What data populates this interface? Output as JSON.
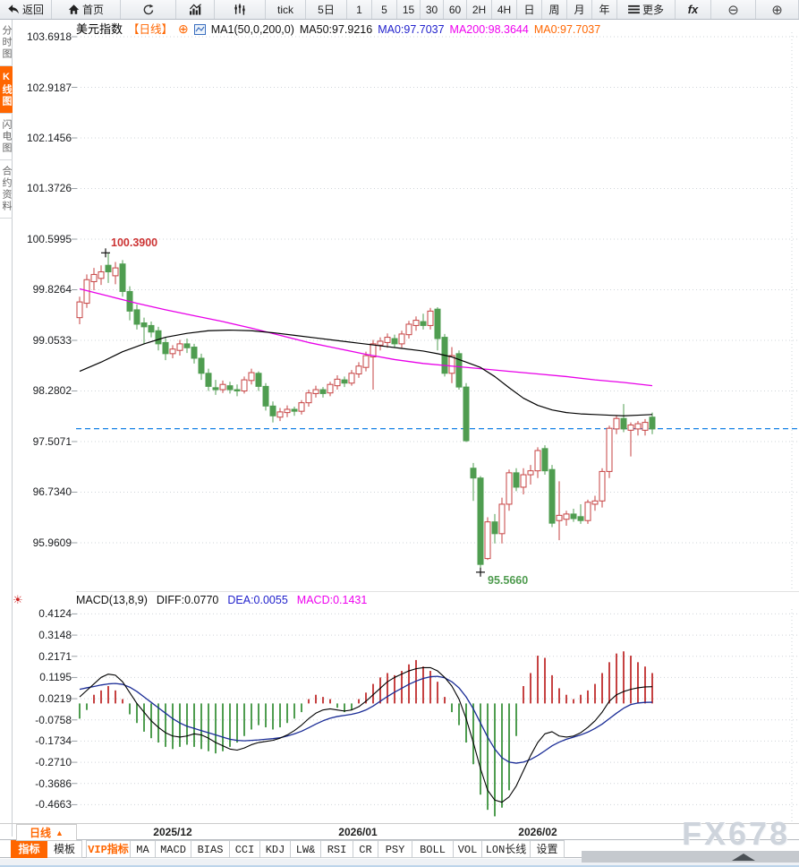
{
  "window": {
    "watermark": "FX678"
  },
  "toolbar": {
    "items": [
      {
        "name": "back",
        "label": "返回",
        "icon": "back-arrow-icon"
      },
      {
        "name": "home",
        "label": "首页",
        "icon": "home-icon"
      },
      {
        "name": "refresh",
        "label": "",
        "icon": "refresh-icon"
      },
      {
        "name": "chart-type-bar",
        "label": "",
        "icon": "bar-chart-icon"
      },
      {
        "name": "chart-type-kline",
        "label": "",
        "icon": "kline-icon"
      },
      {
        "name": "tick",
        "label": "tick"
      },
      {
        "name": "5d",
        "label": "5日"
      },
      {
        "name": "1min",
        "label": "1"
      },
      {
        "name": "5min",
        "label": "5"
      },
      {
        "name": "15min",
        "label": "15"
      },
      {
        "name": "30min",
        "label": "30"
      },
      {
        "name": "60min",
        "label": "60"
      },
      {
        "name": "2h",
        "label": "2H"
      },
      {
        "name": "4h",
        "label": "4H"
      },
      {
        "name": "day",
        "label": "日"
      },
      {
        "name": "week",
        "label": "周"
      },
      {
        "name": "month",
        "label": "月"
      },
      {
        "name": "year",
        "label": "年"
      },
      {
        "name": "more",
        "label": "更多",
        "icon": "menu-icon"
      },
      {
        "name": "fx",
        "label": "fx"
      },
      {
        "name": "zoom-out",
        "label": "⊖",
        "icon": "zoom-out-icon"
      },
      {
        "name": "zoom-in",
        "label": "⊕",
        "icon": "zoom-in-icon"
      }
    ]
  },
  "sidebar": {
    "items": [
      {
        "name": "time-chart",
        "label": "分时图",
        "active": false
      },
      {
        "name": "kline-chart",
        "label": "K线图",
        "active": true
      },
      {
        "name": "lightning-chart",
        "label": "闪电图",
        "active": false
      },
      {
        "name": "contract-info",
        "label": "合约资料",
        "active": false
      }
    ]
  },
  "chart_header": {
    "symbol": "美元指数",
    "period_tag": "【日线】",
    "add_icon": "⊕",
    "ma_settings": "MA1(50,0,200,0)",
    "ma50": "MA50:97.9216",
    "ma0_blue": "MA0:97.7037",
    "ma200": "MA200:98.3644",
    "ma0_orange": "MA0:97.7037"
  },
  "macd_header": {
    "indicator_icon": "☀",
    "title": "MACD(13,8,9)",
    "diff": "DIFF:0.0770",
    "dea": "DEA:0.0055",
    "macd": "MACD:0.1431"
  },
  "bottom": {
    "period_selector": {
      "label": "日线",
      "arrow": "▲"
    },
    "tabs": [
      {
        "name": "indicator",
        "label": "指标",
        "active": true
      },
      {
        "name": "template",
        "label": "模板"
      },
      {
        "name": "vip-indicator",
        "label": "VIP指标",
        "vip": true
      },
      {
        "name": "ma",
        "label": "MA"
      },
      {
        "name": "macd",
        "label": "MACD"
      },
      {
        "name": "bias",
        "label": "BIAS"
      },
      {
        "name": "cci",
        "label": "CCI"
      },
      {
        "name": "kdj",
        "label": "KDJ"
      },
      {
        "name": "lw",
        "label": "LW&"
      },
      {
        "name": "rsi",
        "label": "RSI"
      },
      {
        "name": "cr",
        "label": "CR"
      },
      {
        "name": "psy",
        "label": "PSY"
      },
      {
        "name": "boll",
        "label": "BOLL"
      },
      {
        "name": "vol",
        "label": "VOL"
      },
      {
        "name": "lon",
        "label": "LON长线"
      },
      {
        "name": "settings",
        "label": "设置"
      }
    ]
  },
  "colors": {
    "up_candle": "#c64242",
    "down_candle": "#4f9d50",
    "ma50_line": "#000000",
    "ma200_line": "#e800e8",
    "last_price_line": "#1581e6",
    "diff_line": "#000000",
    "dea_line": "#1a2c96",
    "accent_orange": "#ff6600",
    "grid": "#cfd4d9",
    "annotation_high": "#cc3333",
    "annotation_low": "#4e9b4e"
  },
  "chart_data": [
    {
      "type": "candlestick",
      "title": "美元指数 日线",
      "y_ticks": [
        "103.6918",
        "102.9187",
        "102.1456",
        "101.3726",
        "100.5995",
        "99.8264",
        "99.0533",
        "98.2802",
        "97.5071",
        "96.7340",
        "95.9609"
      ],
      "x_ticks": [
        "2025/12",
        "2026/01",
        "2026/02"
      ],
      "last_price_line": 97.7037,
      "high_annotation": {
        "label": "100.3900",
        "value": 100.39,
        "candle_index": 4
      },
      "low_annotation": {
        "label": "95.5660",
        "value": 95.566,
        "candle_index": 56
      },
      "candles": [
        [
          99.4,
          99.72,
          99.3,
          99.64
        ],
        [
          99.62,
          100.06,
          99.55,
          99.98
        ],
        [
          99.95,
          100.16,
          99.82,
          100.06
        ],
        [
          100.0,
          100.2,
          99.9,
          100.1
        ],
        [
          100.2,
          100.39,
          99.93,
          100.1
        ],
        [
          100.04,
          100.25,
          99.91,
          100.16
        ],
        [
          100.22,
          100.28,
          99.72,
          99.8
        ],
        [
          99.8,
          99.88,
          99.36,
          99.5
        ],
        [
          99.52,
          99.6,
          99.22,
          99.3
        ],
        [
          99.32,
          99.4,
          99.0,
          99.26
        ],
        [
          99.28,
          99.34,
          99.1,
          99.18
        ],
        [
          99.2,
          99.26,
          98.9,
          99.0
        ],
        [
          99.02,
          99.1,
          98.75,
          98.85
        ],
        [
          98.85,
          98.98,
          98.78,
          98.92
        ],
        [
          98.9,
          99.06,
          98.82,
          99.0
        ],
        [
          99.0,
          99.08,
          98.86,
          98.94
        ],
        [
          98.95,
          99.0,
          98.7,
          98.78
        ],
        [
          98.78,
          98.85,
          98.45,
          98.55
        ],
        [
          98.55,
          98.62,
          98.28,
          98.35
        ],
        [
          98.33,
          98.45,
          98.22,
          98.3
        ],
        [
          98.3,
          98.44,
          98.25,
          98.38
        ],
        [
          98.36,
          98.42,
          98.24,
          98.3
        ],
        [
          98.3,
          98.38,
          98.2,
          98.28
        ],
        [
          98.28,
          98.5,
          98.24,
          98.45
        ],
        [
          98.44,
          98.62,
          98.38,
          98.56
        ],
        [
          98.55,
          98.58,
          98.28,
          98.35
        ],
        [
          98.35,
          98.4,
          97.98,
          98.05
        ],
        [
          98.05,
          98.12,
          97.8,
          97.9
        ],
        [
          97.88,
          98.02,
          97.82,
          97.96
        ],
        [
          97.95,
          98.06,
          97.88,
          98.0
        ],
        [
          98.0,
          98.04,
          97.9,
          97.97
        ],
        [
          97.97,
          98.14,
          97.92,
          98.1
        ],
        [
          98.1,
          98.3,
          98.04,
          98.25
        ],
        [
          98.24,
          98.36,
          98.18,
          98.3
        ],
        [
          98.3,
          98.34,
          98.18,
          98.24
        ],
        [
          98.25,
          98.42,
          98.2,
          98.38
        ],
        [
          98.36,
          98.52,
          98.3,
          98.46
        ],
        [
          98.45,
          98.5,
          98.34,
          98.4
        ],
        [
          98.4,
          98.6,
          98.36,
          98.55
        ],
        [
          98.54,
          98.72,
          98.48,
          98.66
        ],
        [
          98.64,
          98.88,
          98.58,
          98.82
        ],
        [
          98.8,
          99.06,
          98.3,
          99.0
        ],
        [
          98.98,
          99.1,
          98.9,
          99.04
        ],
        [
          99.02,
          99.16,
          98.94,
          99.1
        ],
        [
          99.08,
          99.14,
          98.94,
          99.0
        ],
        [
          99.0,
          99.2,
          98.94,
          99.15
        ],
        [
          99.14,
          99.35,
          99.08,
          99.3
        ],
        [
          99.28,
          99.42,
          99.2,
          99.36
        ],
        [
          99.34,
          99.46,
          99.22,
          99.28
        ],
        [
          99.28,
          99.55,
          99.22,
          99.5
        ],
        [
          99.53,
          99.56,
          98.9,
          99.08
        ],
        [
          99.1,
          99.15,
          98.5,
          98.55
        ],
        [
          98.55,
          98.95,
          98.4,
          98.82
        ],
        [
          98.85,
          98.9,
          98.3,
          98.34
        ],
        [
          98.34,
          98.4,
          97.5,
          97.52
        ],
        [
          97.1,
          97.18,
          96.6,
          96.95
        ],
        [
          96.95,
          96.98,
          95.566,
          95.63
        ],
        [
          95.72,
          96.35,
          95.7,
          96.28
        ],
        [
          96.28,
          96.4,
          95.95,
          96.1
        ],
        [
          96.1,
          96.65,
          95.95,
          96.55
        ],
        [
          96.55,
          97.08,
          96.45,
          97.03
        ],
        [
          97.03,
          97.1,
          96.75,
          96.81
        ],
        [
          96.81,
          97.1,
          96.7,
          97.0
        ],
        [
          97.0,
          97.15,
          96.85,
          97.06
        ],
        [
          97.06,
          97.42,
          96.95,
          97.37
        ],
        [
          97.4,
          97.45,
          97.0,
          97.06
        ],
        [
          97.08,
          97.15,
          96.2,
          96.26
        ],
        [
          96.3,
          96.9,
          96.0,
          96.38
        ],
        [
          96.32,
          96.45,
          96.22,
          96.4
        ],
        [
          96.4,
          96.48,
          96.28,
          96.33
        ],
        [
          96.36,
          96.55,
          96.25,
          96.3
        ],
        [
          96.3,
          96.62,
          96.25,
          96.58
        ],
        [
          96.55,
          96.68,
          96.45,
          96.6
        ],
        [
          96.6,
          97.1,
          96.5,
          97.05
        ],
        [
          97.05,
          97.75,
          96.95,
          97.71
        ],
        [
          97.7,
          97.9,
          97.62,
          97.86
        ],
        [
          97.86,
          98.08,
          97.65,
          97.7
        ],
        [
          97.68,
          97.8,
          97.28,
          97.76
        ],
        [
          97.7,
          97.82,
          97.6,
          97.78
        ],
        [
          97.68,
          97.85,
          97.6,
          97.8
        ],
        [
          97.88,
          97.95,
          97.62,
          97.7
        ]
      ],
      "ma50_points": [
        [
          0,
          98.58
        ],
        [
          3,
          98.72
        ],
        [
          6,
          98.88
        ],
        [
          9,
          99.0
        ],
        [
          12,
          99.1
        ],
        [
          15,
          99.16
        ],
        [
          18,
          99.2
        ],
        [
          21,
          99.21
        ],
        [
          24,
          99.2
        ],
        [
          27,
          99.17
        ],
        [
          30,
          99.13
        ],
        [
          33,
          99.09
        ],
        [
          36,
          99.05
        ],
        [
          39,
          99.01
        ],
        [
          42,
          98.97
        ],
        [
          45,
          98.93
        ],
        [
          48,
          98.89
        ],
        [
          50,
          98.85
        ],
        [
          52,
          98.8
        ],
        [
          54,
          98.72
        ],
        [
          56,
          98.64
        ],
        [
          58,
          98.5
        ],
        [
          60,
          98.33
        ],
        [
          62,
          98.17
        ],
        [
          64,
          98.06
        ],
        [
          66,
          97.99
        ],
        [
          68,
          97.95
        ],
        [
          70,
          97.93
        ],
        [
          72,
          97.92
        ],
        [
          74,
          97.91
        ],
        [
          76,
          97.9
        ],
        [
          78,
          97.91
        ],
        [
          80,
          97.92
        ]
      ],
      "ma200_points": [
        [
          0,
          99.84
        ],
        [
          4,
          99.73
        ],
        [
          8,
          99.62
        ],
        [
          12,
          99.52
        ],
        [
          16,
          99.43
        ],
        [
          20,
          99.34
        ],
        [
          24,
          99.24
        ],
        [
          28,
          99.13
        ],
        [
          32,
          99.02
        ],
        [
          36,
          98.93
        ],
        [
          40,
          98.84
        ],
        [
          44,
          98.76
        ],
        [
          48,
          98.7
        ],
        [
          52,
          98.66
        ],
        [
          56,
          98.62
        ],
        [
          60,
          98.58
        ],
        [
          64,
          98.54
        ],
        [
          68,
          98.5
        ],
        [
          72,
          98.45
        ],
        [
          76,
          98.41
        ],
        [
          80,
          98.36
        ]
      ]
    },
    {
      "type": "macd",
      "params": "(13,8,9)",
      "y_ticks": [
        "0.4124",
        "0.3148",
        "0.2171",
        "0.1195",
        "0.0219",
        "-0.0758",
        "-0.1734",
        "-0.2710",
        "-0.3686",
        "-0.4663"
      ],
      "last": {
        "diff": 0.077,
        "dea": 0.0055,
        "macd": 0.1431
      },
      "histogram": [
        -0.07,
        -0.03,
        0.04,
        0.06,
        0.08,
        0.06,
        0.02,
        -0.05,
        -0.09,
        -0.13,
        -0.16,
        -0.18,
        -0.2,
        -0.21,
        -0.2,
        -0.19,
        -0.2,
        -0.21,
        -0.22,
        -0.23,
        -0.22,
        -0.2,
        -0.18,
        -0.15,
        -0.12,
        -0.1,
        -0.11,
        -0.12,
        -0.11,
        -0.09,
        -0.07,
        -0.04,
        0.02,
        0.04,
        0.03,
        0.02,
        -0.02,
        -0.04,
        -0.03,
        0.02,
        0.05,
        0.09,
        0.12,
        0.14,
        0.13,
        0.15,
        0.18,
        0.2,
        0.17,
        0.15,
        0.1,
        0.03,
        -0.04,
        -0.1,
        -0.18,
        -0.28,
        -0.42,
        -0.49,
        -0.52,
        -0.48,
        -0.4,
        -0.15,
        0.08,
        0.14,
        0.22,
        0.21,
        0.13,
        0.07,
        0.04,
        0.02,
        0.04,
        0.06,
        0.09,
        0.14,
        0.19,
        0.23,
        0.24,
        0.22,
        0.19,
        0.17,
        0.14
      ],
      "diff_line": [
        0.03,
        0.06,
        0.09,
        0.12,
        0.135,
        0.13,
        0.1,
        0.05,
        0.0,
        -0.04,
        -0.08,
        -0.11,
        -0.135,
        -0.15,
        -0.155,
        -0.15,
        -0.14,
        -0.145,
        -0.16,
        -0.18,
        -0.195,
        -0.21,
        -0.215,
        -0.205,
        -0.19,
        -0.18,
        -0.175,
        -0.17,
        -0.16,
        -0.145,
        -0.125,
        -0.1,
        -0.07,
        -0.045,
        -0.03,
        -0.025,
        -0.03,
        -0.035,
        -0.03,
        -0.015,
        0.01,
        0.04,
        0.07,
        0.1,
        0.12,
        0.135,
        0.15,
        0.16,
        0.165,
        0.165,
        0.15,
        0.12,
        0.08,
        0.02,
        -0.07,
        -0.18,
        -0.3,
        -0.4,
        -0.445,
        -0.455,
        -0.43,
        -0.38,
        -0.31,
        -0.24,
        -0.18,
        -0.14,
        -0.13,
        -0.15,
        -0.155,
        -0.15,
        -0.135,
        -0.11,
        -0.08,
        -0.04,
        0.01,
        0.04,
        0.055,
        0.065,
        0.072,
        0.076,
        0.077
      ],
      "dea_line": [
        0.065,
        0.072,
        0.078,
        0.085,
        0.09,
        0.092,
        0.088,
        0.075,
        0.055,
        0.03,
        0.005,
        -0.02,
        -0.045,
        -0.07,
        -0.09,
        -0.105,
        -0.115,
        -0.125,
        -0.135,
        -0.145,
        -0.155,
        -0.165,
        -0.17,
        -0.172,
        -0.17,
        -0.168,
        -0.165,
        -0.162,
        -0.158,
        -0.15,
        -0.14,
        -0.128,
        -0.112,
        -0.095,
        -0.08,
        -0.068,
        -0.06,
        -0.055,
        -0.05,
        -0.042,
        -0.03,
        -0.012,
        0.01,
        0.032,
        0.052,
        0.07,
        0.088,
        0.103,
        0.115,
        0.123,
        0.125,
        0.118,
        0.1,
        0.072,
        0.03,
        -0.025,
        -0.09,
        -0.155,
        -0.21,
        -0.25,
        -0.27,
        -0.275,
        -0.27,
        -0.258,
        -0.24,
        -0.218,
        -0.195,
        -0.178,
        -0.165,
        -0.155,
        -0.145,
        -0.132,
        -0.115,
        -0.095,
        -0.07,
        -0.045,
        -0.022,
        -0.005,
        0.002,
        0.005,
        0.0055
      ]
    }
  ]
}
